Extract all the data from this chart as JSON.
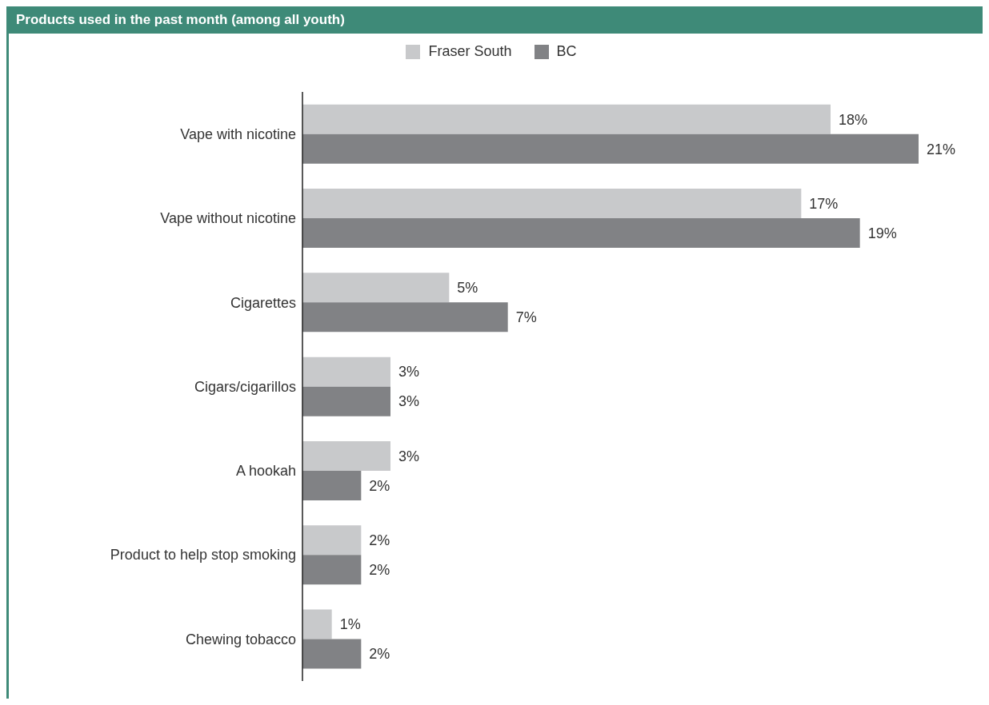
{
  "chart_data": {
    "type": "bar",
    "orientation": "horizontal",
    "title": "Products used in the past month (among all youth)",
    "categories": [
      "Vape with nicotine",
      "Vape without nicotine",
      "Cigarettes",
      "Cigars/cigarillos",
      "A hookah",
      "Product to help stop smoking",
      "Chewing tobacco"
    ],
    "series": [
      {
        "name": "Fraser South",
        "color": "#c8c9cb",
        "values": [
          18,
          17,
          5,
          3,
          3,
          2,
          1
        ],
        "value_labels": [
          "18%",
          "17%",
          "5%",
          "3%",
          "3%",
          "2%",
          "1%"
        ]
      },
      {
        "name": "BC",
        "color": "#818285",
        "values": [
          21,
          19,
          7,
          3,
          2,
          2,
          2
        ],
        "value_labels": [
          "21%",
          "19%",
          "7%",
          "3%",
          "2%",
          "2%",
          "2%"
        ]
      }
    ],
    "legend": "top"
  }
}
